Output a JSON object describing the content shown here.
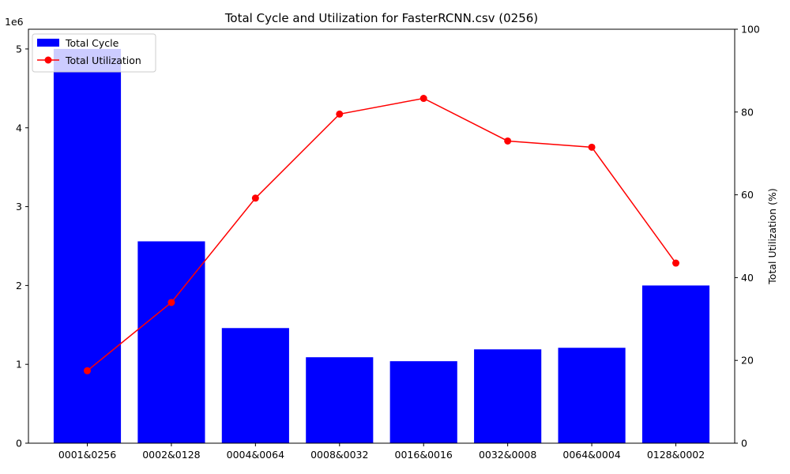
{
  "chart_data": {
    "type": "bar+line",
    "title": "Total Cycle and Utilization for FasterRCNN.csv (0256)",
    "xlabel": "",
    "categories": [
      "0001&0256",
      "0002&0128",
      "0004&0064",
      "0008&0032",
      "0016&0016",
      "0032&0008",
      "0064&0004",
      "0128&0002"
    ],
    "left_axis": {
      "label": "",
      "offset_text": "1e6",
      "ylim": [
        0,
        5.25
      ],
      "ticks": [
        0,
        1,
        2,
        3,
        4,
        5
      ],
      "tick_labels": [
        "0",
        "1",
        "2",
        "3",
        "4",
        "5"
      ]
    },
    "right_axis": {
      "label": "Total Utilization (%)",
      "ylim": [
        0,
        100
      ],
      "ticks": [
        0,
        20,
        40,
        60,
        80,
        100
      ],
      "tick_labels": [
        "0",
        "20",
        "40",
        "60",
        "80",
        "100"
      ]
    },
    "series": [
      {
        "name": "Total Cycle",
        "kind": "bar",
        "axis": "left",
        "color": "#0000ff",
        "values": [
          5.0,
          2.56,
          1.46,
          1.09,
          1.04,
          1.19,
          1.21,
          2.0
        ]
      },
      {
        "name": "Total Utilization",
        "kind": "line",
        "axis": "right",
        "color": "#ff0000",
        "marker": "circle",
        "values": [
          17.5,
          34.0,
          59.2,
          79.5,
          83.3,
          73.0,
          71.5,
          43.5
        ]
      }
    ],
    "legend": {
      "placement": "top-left",
      "entries": [
        "Total Cycle",
        "Total Utilization"
      ]
    },
    "grid": false
  }
}
